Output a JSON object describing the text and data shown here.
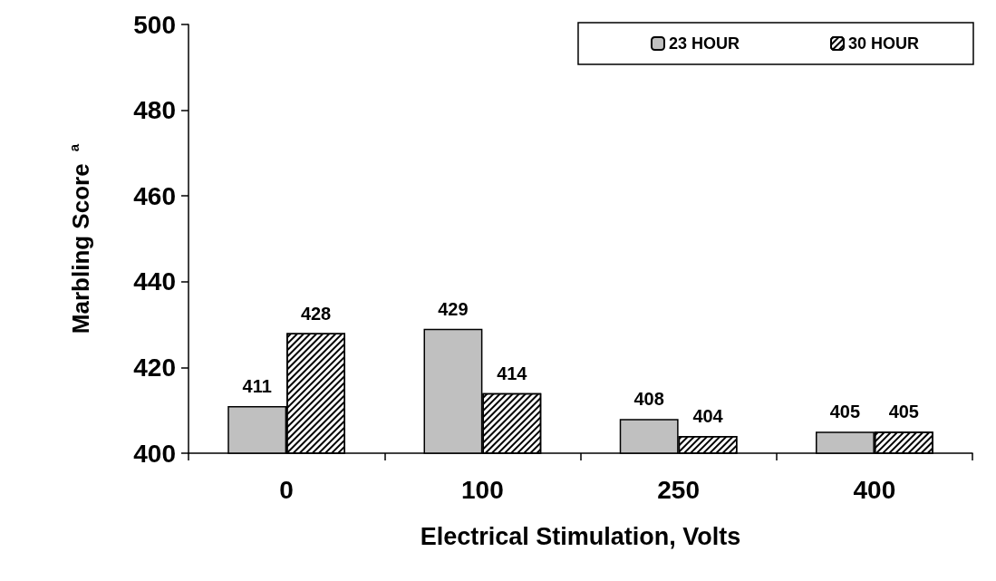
{
  "chart_data": {
    "type": "bar",
    "xlabel": "Electrical Stimulation, Volts",
    "ylabel": "Marbling Score $^{a}$",
    "categories": [
      "0",
      "100",
      "250",
      "400"
    ],
    "series": [
      {
        "name": "23 HOUR",
        "color": "#c0c0c0",
        "values": [
          411,
          429,
          408,
          405
        ]
      },
      {
        "name": "30 HOUR",
        "color": "#000000",
        "values": [
          428,
          414,
          404,
          405
        ]
      }
    ],
    "ylim": [
      400,
      500
    ],
    "yticks": [
      400,
      420,
      440,
      460,
      480,
      500
    ],
    "grid": false,
    "legend": "top right",
    "data_labels": true
  }
}
